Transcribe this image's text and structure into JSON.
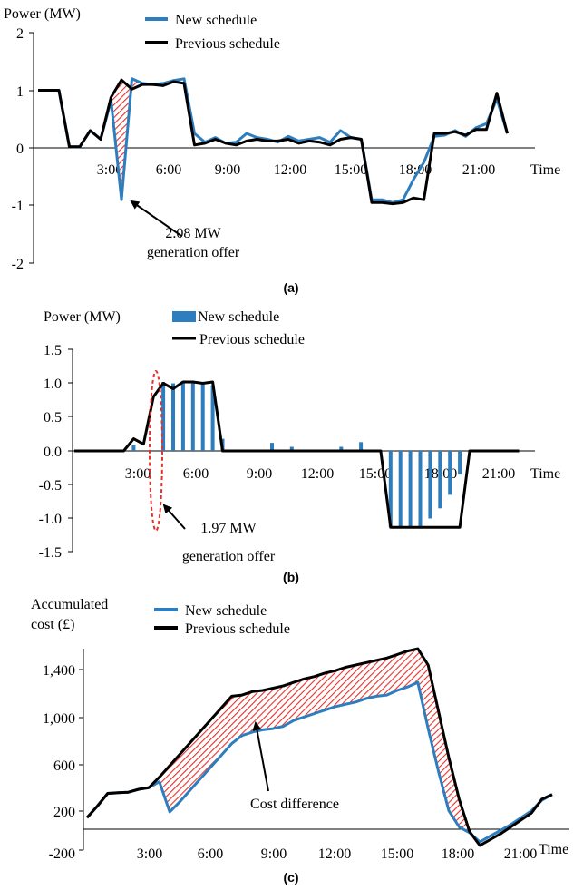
{
  "chart_data": [
    {
      "id": "a",
      "type": "line",
      "caption": "(a)",
      "ylabel": "Power (MW)",
      "xlabel": "Time",
      "ylim": [
        -2,
        2
      ],
      "yticks": [
        "2",
        "1",
        "0",
        "-1",
        "-2"
      ],
      "xticks": [
        "3:00",
        "6:00",
        "9:00",
        "12:00",
        "15:00",
        "18:00",
        "21:00"
      ],
      "annotation": "2.08 MW generation offer",
      "series": [
        {
          "name": "New schedule",
          "color": "#2e7ebf",
          "values": [
            1.0,
            1.0,
            1.0,
            0.02,
            0.02,
            0.3,
            0.15,
            0.82,
            -0.9,
            1.2,
            1.12,
            1.1,
            1.12,
            1.17,
            1.2,
            0.25,
            0.1,
            0.18,
            0.08,
            0.1,
            0.25,
            0.18,
            0.15,
            0.1,
            0.2,
            0.12,
            0.15,
            0.18,
            0.1,
            0.3,
            0.18,
            0.15,
            -0.9,
            -0.9,
            -0.95,
            -0.9,
            -0.55,
            -0.25,
            0.2,
            0.22,
            0.3,
            0.2,
            0.35,
            0.42,
            0.85,
            0.25
          ]
        },
        {
          "name": "Previous schedule",
          "color": "#000000",
          "values": [
            1.0,
            1.0,
            1.0,
            0.02,
            0.02,
            0.3,
            0.15,
            0.88,
            1.18,
            1.02,
            1.1,
            1.1,
            1.08,
            1.15,
            1.12,
            0.05,
            0.08,
            0.15,
            0.08,
            0.05,
            0.12,
            0.15,
            0.12,
            0.12,
            0.15,
            0.08,
            0.12,
            0.1,
            0.05,
            0.15,
            0.18,
            0.15,
            -0.95,
            -0.95,
            -0.97,
            -0.95,
            -0.87,
            -0.9,
            0.25,
            0.25,
            0.28,
            0.22,
            0.32,
            0.32,
            0.95,
            0.25
          ]
        }
      ]
    },
    {
      "id": "b",
      "type": "bar",
      "caption": "(b)",
      "ylabel": "Power (MW)",
      "xlabel": "Time",
      "ylim": [
        -1.5,
        1.5
      ],
      "yticks": [
        "1.5",
        "1.0",
        "0.5",
        "0.0",
        "-0.5",
        "-1.0",
        "-1.5"
      ],
      "xticks": [
        "3:00",
        "6:00",
        "9:00",
        "12:00",
        "15:00",
        "18:00",
        "21:00"
      ],
      "annotation": "1.97 MW generation offer",
      "series": [
        {
          "name": "New schedule",
          "color": "#2e7ebf",
          "values": [
            0,
            0,
            0,
            0,
            0,
            0,
            0.08,
            0,
            0,
            1.02,
            1.0,
            1.0,
            1.0,
            1.0,
            0.97,
            0.18,
            0,
            0,
            0,
            0,
            0.12,
            0,
            0.06,
            0,
            0,
            0,
            0,
            0.06,
            0,
            0.13,
            0,
            0,
            -1.13,
            -1.13,
            -1.13,
            -1.13,
            -1.0,
            -0.85,
            -0.65,
            -0.35,
            0,
            0,
            0,
            0,
            0,
            0
          ]
        },
        {
          "name": "Previous schedule",
          "color": "#000000",
          "values": [
            0,
            0,
            0,
            0,
            0,
            0,
            0.18,
            0.1,
            0.8,
            1.0,
            0.92,
            1.02,
            1.02,
            1.0,
            1.02,
            0.0,
            0,
            0,
            0,
            0,
            0,
            0,
            0,
            0,
            0,
            0,
            0,
            0,
            0,
            0,
            0,
            0,
            -1.13,
            -1.13,
            -1.13,
            -1.13,
            -1.13,
            -1.13,
            -1.13,
            -1.13,
            0,
            0,
            0,
            0,
            0,
            0
          ]
        }
      ]
    },
    {
      "id": "c",
      "type": "line",
      "caption": "(c)",
      "ylabel": "Accumulated cost (£)",
      "ylabel_lines": [
        "Accumulated",
        "cost (£)"
      ],
      "xlabel": "Time",
      "ylim": [
        -200,
        1700
      ],
      "yticks": [
        "1,400",
        "1,000",
        "600",
        "200",
        "-200"
      ],
      "xticks": [
        "3:00",
        "6:00",
        "9:00",
        "12:00",
        "15:00",
        "18:00",
        "21:00"
      ],
      "annotation": "Cost difference",
      "series": [
        {
          "name": "New schedule",
          "color": "#2e7ebf",
          "values": [
            100,
            200,
            310,
            315,
            320,
            345,
            360,
            410,
            150,
            240,
            340,
            440,
            540,
            640,
            740,
            810,
            840,
            860,
            870,
            890,
            940,
            970,
            1000,
            1030,
            1060,
            1080,
            1100,
            1130,
            1150,
            1160,
            1200,
            1230,
            1270,
            870,
            500,
            160,
            20,
            -30,
            -110,
            -60,
            -10,
            40,
            100,
            160,
            250,
            300
          ]
        },
        {
          "name": "Previous schedule",
          "color": "#000000",
          "values": [
            100,
            200,
            310,
            315,
            320,
            345,
            360,
            450,
            550,
            650,
            750,
            850,
            950,
            1050,
            1150,
            1160,
            1190,
            1200,
            1220,
            1240,
            1270,
            1300,
            1320,
            1350,
            1370,
            1400,
            1420,
            1440,
            1460,
            1480,
            1510,
            1540,
            1560,
            1420,
            1020,
            620,
            260,
            -20,
            -140,
            -90,
            -40,
            20,
            80,
            140,
            260,
            300
          ]
        }
      ]
    }
  ]
}
